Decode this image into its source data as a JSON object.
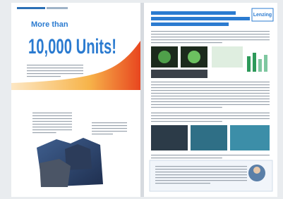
{
  "left_page": {
    "heading_small": "More than",
    "heading_large": "10,000 Units!"
  },
  "right_page": {
    "logo": "Lenzing"
  }
}
